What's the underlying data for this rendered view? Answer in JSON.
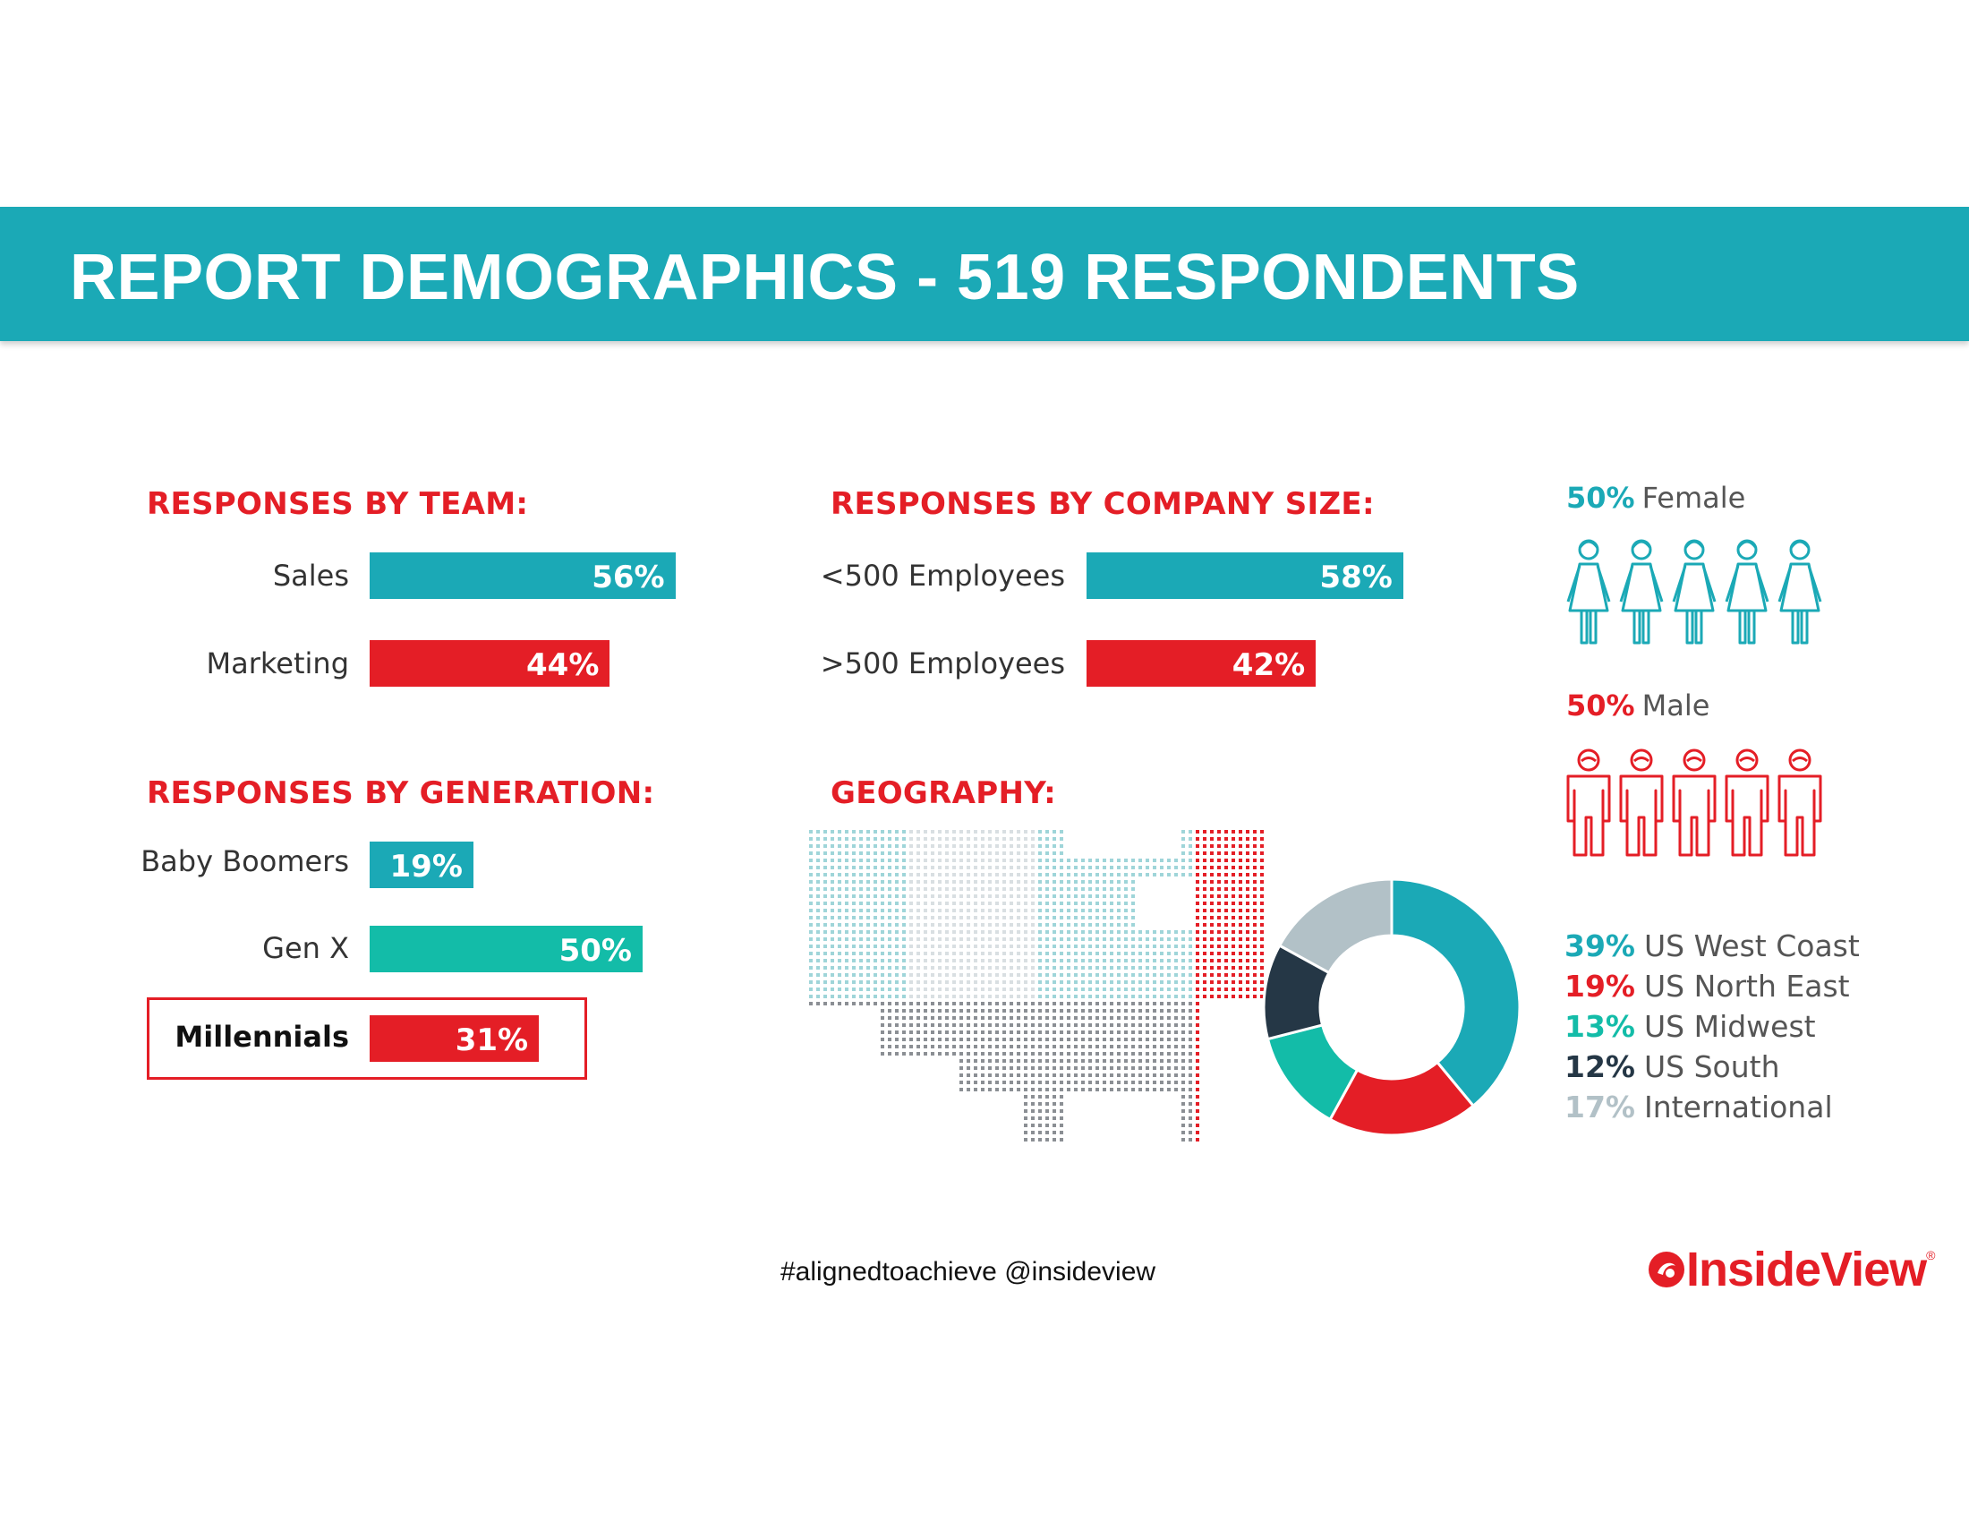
{
  "banner": {
    "title": "REPORT DEMOGRAPHICS - 519 RESPONDENTS"
  },
  "colors": {
    "teal": "#1ba9b6",
    "red": "#e41e26",
    "mint": "#13bca8",
    "navy": "#253746",
    "gray": "#b2c1c7",
    "map_gray": "#8b8f94"
  },
  "chart_data": [
    {
      "type": "bar",
      "orientation": "horizontal",
      "title": "RESPONSES BY TEAM:",
      "categories": [
        "Sales",
        "Marketing"
      ],
      "values": [
        56,
        44
      ],
      "labels": [
        "56%",
        "44%"
      ],
      "colors": [
        "#1ba9b6",
        "#e41e26"
      ]
    },
    {
      "type": "bar",
      "orientation": "horizontal",
      "title": "RESPONSES BY COMPANY SIZE:",
      "categories": [
        "<500 Employees",
        ">500 Employees"
      ],
      "values": [
        58,
        42
      ],
      "labels": [
        "58%",
        "42%"
      ],
      "colors": [
        "#1ba9b6",
        "#e41e26"
      ]
    },
    {
      "type": "bar",
      "orientation": "horizontal",
      "title": "RESPONSES BY GENERATION:",
      "categories": [
        "Baby Boomers",
        "Gen X",
        "Millennials"
      ],
      "values": [
        19,
        50,
        31
      ],
      "labels": [
        "19%",
        "50%",
        "31%"
      ],
      "colors": [
        "#1ba9b6",
        "#13bca8",
        "#e41e26"
      ],
      "highlighted": "Millennials"
    },
    {
      "type": "pie",
      "style": "donut",
      "title": "GEOGRAPHY:",
      "categories": [
        "US West Coast",
        "US North East",
        "US Midwest",
        "US South",
        "International"
      ],
      "values": [
        39,
        19,
        13,
        12,
        17
      ],
      "labels": [
        "39%",
        "19%",
        "13%",
        "12%",
        "17%"
      ],
      "colors": [
        "#1ba9b6",
        "#e41e26",
        "#13bca8",
        "#253746",
        "#b2c1c7"
      ]
    },
    {
      "type": "pictogram",
      "categories": [
        "Female",
        "Male"
      ],
      "values": [
        50,
        50
      ],
      "labels": [
        "50%",
        "50%"
      ],
      "colors": [
        "#1ba9b6",
        "#e41e26"
      ],
      "icons": [
        "female-person-icon",
        "male-person-icon"
      ],
      "icons_per_row": 5
    }
  ],
  "footer": {
    "hashtag": "#alignedtoachieve @insideview",
    "logo_text": "InsideView",
    "logo_mark": "®"
  }
}
